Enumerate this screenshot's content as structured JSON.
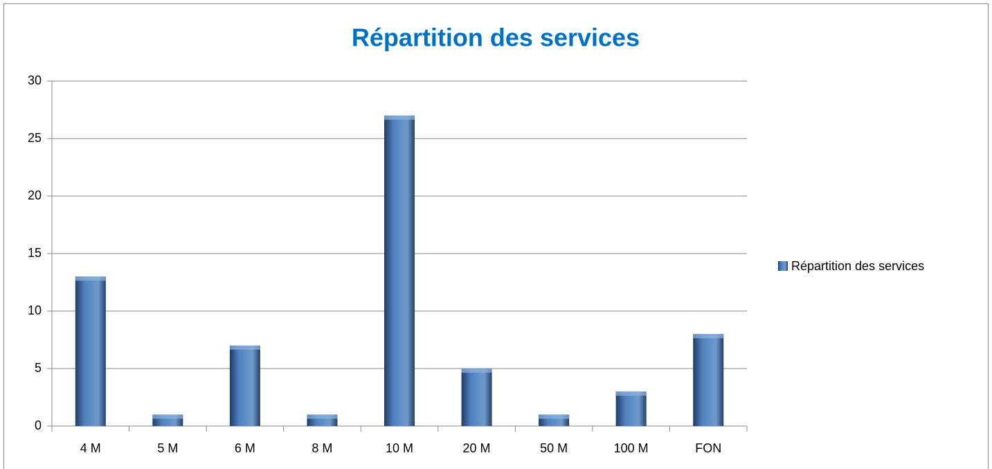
{
  "chart_data": {
    "type": "bar",
    "title": "Répartition des services",
    "categories": [
      "4 M",
      "5 M",
      "6 M",
      "8 M",
      "10 M",
      "20 M",
      "50 M",
      "100 M",
      "FON"
    ],
    "series": [
      {
        "name": "Répartition des services",
        "color": "#4f81bd",
        "values": [
          13,
          1,
          7,
          1,
          27,
          5,
          1,
          3,
          8
        ]
      }
    ],
    "ylim": [
      0,
      30
    ],
    "yticks": [
      0,
      5,
      10,
      15,
      20,
      25,
      30
    ],
    "grid": true,
    "legend": "right"
  }
}
